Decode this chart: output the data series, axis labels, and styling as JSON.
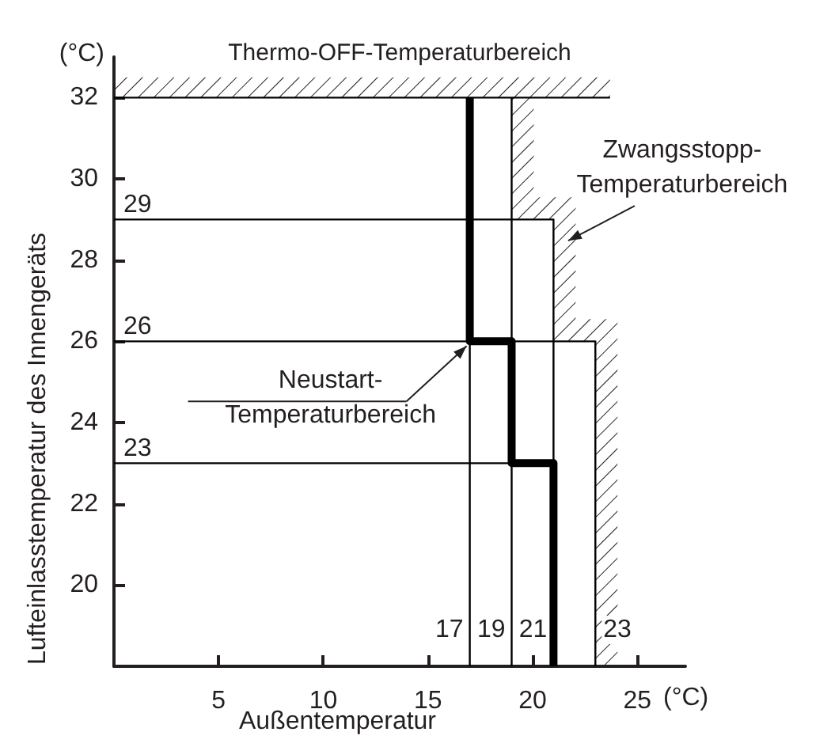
{
  "chart_data": {
    "type": "line",
    "xlabel": "Außentemperatur",
    "ylabel": "Lufteinlasstemperatur des Innengeräts",
    "xlim": [
      0,
      27.3
    ],
    "xticks": [
      5,
      10,
      15,
      20,
      25
    ],
    "ylim": [
      18,
      33
    ],
    "yticks": [
      20,
      22,
      24,
      26,
      28,
      30,
      32
    ],
    "grid": false,
    "marker": "none",
    "line_style": "solid",
    "series": [
      {
        "color": "#000000",
        "x": [
          17,
          17,
          19,
          19,
          21,
          21
        ],
        "values": [
          32,
          26,
          26,
          23,
          23,
          18
        ]
      },
      {
        "color": "#000000",
        "x": [
          0,
          23.7
        ],
        "values": [
          32,
          32
        ]
      },
      {
        "color": "#000000",
        "x": [
          0,
          21,
          21
        ],
        "values": [
          29,
          29,
          18
        ]
      },
      {
        "color": "#000000",
        "x": [
          0,
          23,
          23
        ],
        "values": [
          26,
          26,
          18
        ]
      },
      {
        "color": "#000000",
        "x": [
          0,
          21
        ],
        "values": [
          23,
          23
        ]
      },
      {
        "color": "#000000",
        "x": [
          17,
          17
        ],
        "values": [
          32,
          18
        ]
      },
      {
        "color": "#000000",
        "x": [
          19,
          19
        ],
        "values": [
          32,
          18
        ]
      }
    ],
    "bands": [
      {
        "axis": "y",
        "from": 32,
        "to": 32.5,
        "label": "Thermo-OFF-Temperaturbereich"
      }
    ],
    "annotations": [
      "(°C)",
      "(°C)",
      {
        "text": "29",
        "x": 0,
        "y": 29
      },
      {
        "text": "26",
        "x": 0,
        "y": 26
      },
      {
        "text": "23",
        "x": 0,
        "y": 23
      },
      {
        "text": "17",
        "x": 17,
        "y": 18
      },
      {
        "text": "19",
        "x": 19,
        "y": 18
      },
      {
        "text": "21",
        "x": 21,
        "y": 18
      },
      {
        "text": "23",
        "x": 23,
        "y": 18
      },
      {
        "text": "Neustart-\nTemperaturbereich",
        "x": 17,
        "y": 26
      },
      "Zwangsstopp-\nTemperaturbereich"
    ]
  }
}
